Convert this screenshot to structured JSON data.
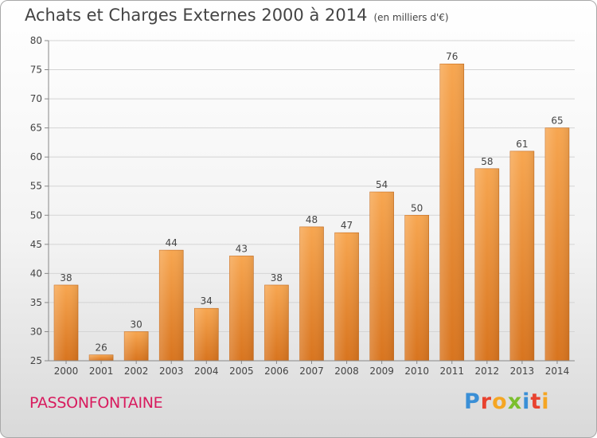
{
  "title": "Achats et Charges Externes 2000 à 2014",
  "subtitle": "(en milliers d'€)",
  "commune": "PASSONFONTAINE",
  "brand": {
    "letters": [
      "P",
      "r",
      "o",
      "x",
      "i",
      "t",
      "i"
    ],
    "colors": [
      "#3a8fd6",
      "#e8422f",
      "#f5a623",
      "#7bbf2e",
      "#3a8fd6",
      "#e8422f",
      "#f5a623"
    ]
  },
  "chart_data": {
    "type": "bar",
    "categories": [
      "2000",
      "2001",
      "2002",
      "2003",
      "2004",
      "2005",
      "2006",
      "2007",
      "2008",
      "2009",
      "2010",
      "2011",
      "2012",
      "2013",
      "2014"
    ],
    "values": [
      38,
      26,
      30,
      44,
      34,
      43,
      38,
      48,
      47,
      54,
      50,
      76,
      58,
      61,
      65
    ],
    "ylim": [
      25,
      80
    ],
    "yticks": [
      25,
      30,
      35,
      40,
      45,
      50,
      55,
      60,
      65,
      70,
      75,
      80
    ],
    "grid": true,
    "bar_color": "#f0963c"
  }
}
